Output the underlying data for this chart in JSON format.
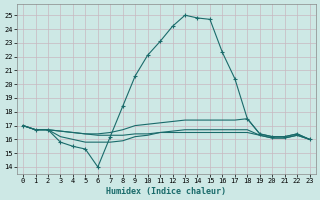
{
  "xlabel": "Humidex (Indice chaleur)",
  "bg_color": "#cde8e5",
  "grid_color": "#b8d4d0",
  "line_color": "#1a6b6b",
  "xlim": [
    -0.5,
    23.5
  ],
  "ylim": [
    13.5,
    25.8
  ],
  "xticks": [
    0,
    1,
    2,
    3,
    4,
    5,
    6,
    7,
    8,
    9,
    10,
    11,
    12,
    13,
    14,
    15,
    16,
    17,
    18,
    19,
    20,
    21,
    22,
    23
  ],
  "yticks": [
    14,
    15,
    16,
    17,
    18,
    19,
    20,
    21,
    22,
    23,
    24,
    25
  ],
  "line1_x": [
    0,
    1,
    2,
    3,
    4,
    5,
    6,
    7,
    8,
    9,
    10,
    11,
    12,
    13,
    14,
    15,
    16,
    17,
    18,
    19,
    20,
    21,
    22,
    23
  ],
  "line1_y": [
    17.0,
    16.7,
    16.7,
    15.8,
    15.5,
    15.3,
    14.0,
    16.2,
    18.4,
    20.6,
    22.1,
    23.1,
    24.2,
    25.0,
    24.8,
    24.7,
    22.3,
    20.4,
    17.5,
    16.4,
    16.2,
    16.2,
    16.4,
    16.0
  ],
  "line2_x": [
    0,
    1,
    2,
    3,
    4,
    5,
    6,
    7,
    8,
    9,
    10,
    11,
    12,
    13,
    14,
    15,
    16,
    17,
    18,
    19,
    20,
    21,
    22,
    23
  ],
  "line2_y": [
    17.0,
    16.7,
    16.7,
    16.6,
    16.5,
    16.4,
    16.4,
    16.5,
    16.7,
    17.0,
    17.1,
    17.2,
    17.3,
    17.4,
    17.4,
    17.4,
    17.4,
    17.4,
    17.5,
    16.4,
    16.2,
    16.2,
    16.4,
    16.0
  ],
  "line3_x": [
    0,
    1,
    2,
    3,
    4,
    5,
    6,
    7,
    8,
    9,
    10,
    11,
    12,
    13,
    14,
    15,
    16,
    17,
    18,
    19,
    20,
    21,
    22,
    23
  ],
  "line3_y": [
    17.0,
    16.7,
    16.7,
    16.2,
    16.0,
    15.8,
    15.8,
    15.8,
    15.9,
    16.2,
    16.3,
    16.5,
    16.6,
    16.7,
    16.7,
    16.7,
    16.7,
    16.7,
    16.7,
    16.3,
    16.1,
    16.1,
    16.3,
    16.0
  ],
  "line4_x": [
    0,
    1,
    2,
    3,
    4,
    5,
    6,
    7,
    8,
    9,
    10,
    11,
    12,
    13,
    14,
    15,
    16,
    17,
    18,
    19,
    20,
    21,
    22,
    23
  ],
  "line4_y": [
    17.0,
    16.7,
    16.7,
    16.6,
    16.5,
    16.4,
    16.3,
    16.3,
    16.3,
    16.4,
    16.4,
    16.5,
    16.5,
    16.5,
    16.5,
    16.5,
    16.5,
    16.5,
    16.5,
    16.3,
    16.1,
    16.1,
    16.3,
    16.0
  ]
}
